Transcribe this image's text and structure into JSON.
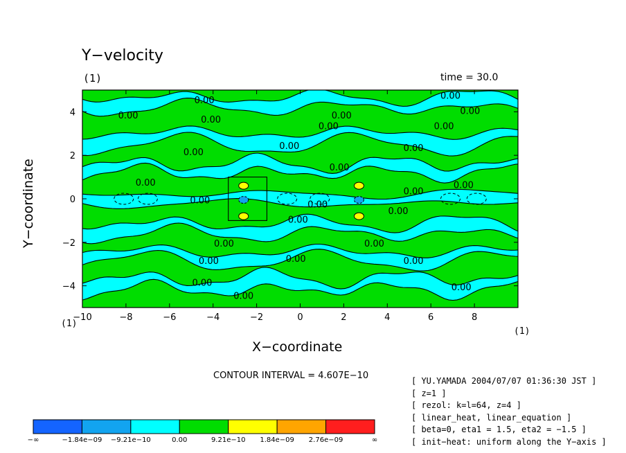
{
  "chart_data": {
    "type": "heatmap",
    "title": "Y−velocity",
    "subtitle_left": "(1)",
    "subtitle_right": "time = 30.0",
    "xlabel": "X−coordinate",
    "ylabel": "Y−coordinate",
    "xlim": [
      -10,
      10
    ],
    "ylim": [
      -5,
      5
    ],
    "x_ticks": [
      "−10",
      "−8",
      "−6",
      "−4",
      "−2",
      "0",
      "2",
      "4",
      "6",
      "8"
    ],
    "x_tick_values": [
      -10,
      -8,
      -6,
      -4,
      -2,
      0,
      2,
      4,
      6,
      8
    ],
    "y_ticks": [
      "4",
      "2",
      "0",
      "−2",
      "−4"
    ],
    "y_tick_values": [
      4,
      2,
      0,
      -2,
      -4
    ],
    "corner_labels": [
      "(1)",
      "(1)"
    ],
    "contour_interval": "CONTOUR INTERVAL = 4.607E−10",
    "contour_label_text": "0.00",
    "contour_labels": [
      {
        "x": -4.4,
        "y": 4.4
      },
      {
        "x": -7.9,
        "y": 3.7
      },
      {
        "x": -4.1,
        "y": 3.5
      },
      {
        "x": 1.9,
        "y": 3.7
      },
      {
        "x": 1.3,
        "y": 3.2
      },
      {
        "x": -0.5,
        "y": 2.3
      },
      {
        "x": -4.9,
        "y": 2.0
      },
      {
        "x": 6.9,
        "y": 4.6
      },
      {
        "x": 7.8,
        "y": 3.9
      },
      {
        "x": 6.6,
        "y": 3.2
      },
      {
        "x": 5.2,
        "y": 2.2
      },
      {
        "x": 1.8,
        "y": 1.3
      },
      {
        "x": -7.1,
        "y": 0.6
      },
      {
        "x": -4.6,
        "y": -0.2
      },
      {
        "x": 0.8,
        "y": -0.4
      },
      {
        "x": -0.1,
        "y": -1.1
      },
      {
        "x": 5.2,
        "y": 0.2
      },
      {
        "x": 4.5,
        "y": -0.7
      },
      {
        "x": 7.5,
        "y": 0.5
      },
      {
        "x": -3.5,
        "y": -2.2
      },
      {
        "x": 3.4,
        "y": -2.2
      },
      {
        "x": -4.2,
        "y": -3.0
      },
      {
        "x": -0.2,
        "y": -2.9
      },
      {
        "x": 5.2,
        "y": -3.0
      },
      {
        "x": -4.5,
        "y": -4.0
      },
      {
        "x": 7.4,
        "y": -4.2
      },
      {
        "x": -2.6,
        "y": -4.6
      }
    ],
    "colorbar": {
      "colors": [
        "#1464ff",
        "#12a4f0",
        "#00ffff",
        "#00dd00",
        "#ffff00",
        "#ffa500",
        "#ff1e1e"
      ],
      "labels": [
        "−∞",
        "−1.84e−09",
        "−9.21e−10",
        "0.00",
        "9.21e−10",
        "1.84e−09",
        "2.76e−09",
        "∞"
      ]
    }
  },
  "info_lines": [
    "[ YU.YAMADA 2004/07/07 01:36:30 JST ]",
    "[ z=1 ]",
    "[ rezol: k=l=64, z=4 ]",
    "[ linear_heat, linear_equation ]",
    "[ beta=0, eta1 = 1.5, eta2 = −1.5 ]",
    "[ init−heat: uniform along the Y−axis ]"
  ],
  "colors": {
    "positive_fill": "#00dd00",
    "negative_fill": "#00ffff"
  }
}
